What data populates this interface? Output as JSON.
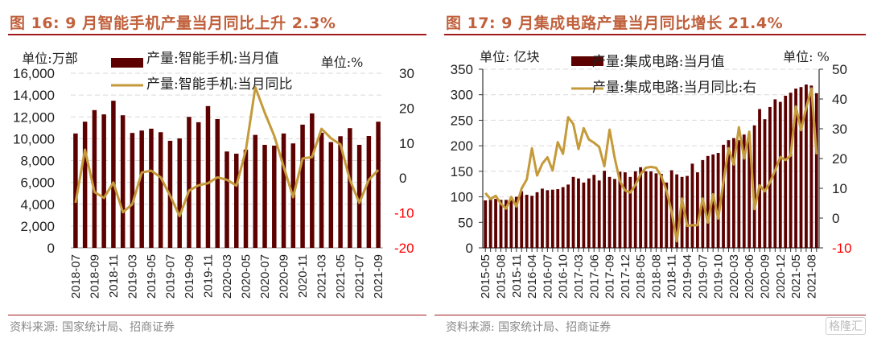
{
  "watermark": "格隆汇",
  "chart_data": [
    {
      "type": "bar",
      "figure_title": "图 16:  9 月智能手机产量当月同比上升 2.3%",
      "source": "资料来源:  国家统计局、招商证券",
      "left_unit": "单位:万部",
      "right_unit": "单位:%",
      "legend": [
        {
          "name": "产量:智能手机:当月值",
          "kind": "bar",
          "color": "#5c0000"
        },
        {
          "name": "产量:智能手机:当月同比",
          "kind": "line",
          "color": "#c49a3a"
        }
      ],
      "legend_placement": "top-center",
      "grid": true,
      "ylim_left": [
        0,
        16000
      ],
      "yticks_left": [
        "0",
        "2,000",
        "4,000",
        "6,000",
        "8,000",
        "10,000",
        "12,000",
        "14,000",
        "16,000"
      ],
      "ylim_right": [
        -20,
        30
      ],
      "yticks_right": [
        "-20",
        "-10",
        "0",
        "10",
        "20",
        "30"
      ],
      "negative_tick_color": "#ff0000",
      "x": [
        "2018-07",
        "2018-08",
        "2018-09",
        "2018-10",
        "2018-11",
        "2018-12",
        "2019-03",
        "2019-04",
        "2019-05",
        "2019-06",
        "2019-07",
        "2019-08",
        "2019-09",
        "2019-10",
        "2019-11",
        "2019-12",
        "2020-03",
        "2020-04",
        "2020-05",
        "2020-06",
        "2020-07",
        "2020-08",
        "2020-09",
        "2020-10",
        "2020-11",
        "2020-12",
        "2021-03",
        "2021-04",
        "2021-05",
        "2021-06",
        "2021-07",
        "2021-08",
        "2021-09"
      ],
      "xtick_labels": [
        "2018-07",
        "2018-09",
        "2018-11",
        "2019-03",
        "2019-05",
        "2019-07",
        "2019-09",
        "2019-11",
        "2020-03",
        "2020-05",
        "2020-07",
        "2020-09",
        "2020-11",
        "2021-03",
        "2021-05",
        "2021-07",
        "2021-09"
      ],
      "series": [
        {
          "name": "产量:智能手机:当月值",
          "axis": "left",
          "type": "bar",
          "values": [
            10480,
            11560,
            12620,
            12230,
            13480,
            12150,
            10530,
            10750,
            10920,
            10600,
            9810,
            10030,
            12000,
            11510,
            12990,
            11800,
            8830,
            8630,
            9000,
            10350,
            9440,
            9370,
            10480,
            9570,
            11290,
            12320,
            10550,
            9690,
            10230,
            10970,
            9440,
            10250,
            11560
          ]
        },
        {
          "name": "产量:智能手机:当月同比",
          "axis": "right",
          "type": "line",
          "values": [
            -7.1,
            8.1,
            -4.0,
            -5.7,
            -1.3,
            -9.8,
            -7.5,
            1.6,
            2.1,
            0.2,
            -5.1,
            -10.9,
            -3.6,
            -2.1,
            -1.5,
            0.2,
            -0.5,
            -2.2,
            7.9,
            26.0,
            18.7,
            12.1,
            3.3,
            -5.5,
            5.6,
            6.0,
            14.1,
            11.4,
            9.6,
            -0.5,
            -7.1,
            -0.5,
            2.3
          ]
        }
      ]
    },
    {
      "type": "bar",
      "figure_title": "图 17:  9 月集成电路产量当月同比增长 21.4%",
      "source": "资料来源:  国家统计局、招商证券",
      "left_unit": "单位:  亿块",
      "right_unit": "单位:  %",
      "legend": [
        {
          "name": "产量:集成电路:当月值",
          "kind": "bar",
          "color": "#5c0000"
        },
        {
          "name": "产量:集成电路:当月同比:右",
          "kind": "line",
          "color": "#c49a3a"
        }
      ],
      "legend_placement": "top-center",
      "grid": true,
      "ylim_left": [
        0,
        350
      ],
      "yticks_left": [
        "0",
        "50",
        "100",
        "150",
        "200",
        "250",
        "300",
        "350"
      ],
      "ylim_right": [
        -10,
        50
      ],
      "yticks_right": [
        "-10",
        "0",
        "10",
        "20",
        "30",
        "40",
        "50"
      ],
      "negative_tick_color": "#ff0000",
      "x": [
        "2015-05",
        "2015-06",
        "2015-07",
        "2015-08",
        "2015-09",
        "2015-10",
        "2015-11",
        "2015-12",
        "2016-03",
        "2016-04",
        "2016-05",
        "2016-06",
        "2016-07",
        "2016-08",
        "2016-09",
        "2016-10",
        "2016-11",
        "2016-12",
        "2017-03",
        "2017-04",
        "2017-05",
        "2017-06",
        "2017-07",
        "2017-08",
        "2017-09",
        "2017-10",
        "2017-11",
        "2017-12",
        "2018-03",
        "2018-04",
        "2018-05",
        "2018-06",
        "2018-07",
        "2018-08",
        "2018-09",
        "2018-10",
        "2018-11",
        "2018-12",
        "2019-03",
        "2019-04",
        "2019-05",
        "2019-06",
        "2019-07",
        "2019-08",
        "2019-09",
        "2019-10",
        "2019-11",
        "2019-12",
        "2020-03",
        "2020-04",
        "2020-05",
        "2020-06",
        "2020-07",
        "2020-08",
        "2020-09",
        "2020-10",
        "2020-11",
        "2020-12",
        "2021-03",
        "2021-04",
        "2021-05",
        "2021-06",
        "2021-07",
        "2021-08",
        "2021-09"
      ],
      "xtick_labels": [
        "2015-05",
        "2015-08",
        "2015-11",
        "2016-04",
        "2016-07",
        "2016-10",
        "2017-03",
        "2017-06",
        "2017-09",
        "2017-12",
        "2018-05",
        "2018-08",
        "2018-11",
        "2019-04",
        "2019-07",
        "2019-10",
        "2020-03",
        "2020-06",
        "2020-09",
        "2020-12",
        "2021-05",
        "2021-08"
      ],
      "series": [
        {
          "name": "产量:集成电路:当月值",
          "axis": "left",
          "type": "bar",
          "values": [
            93,
            95,
            96,
            94,
            94,
            93,
            100,
            111,
            104,
            102,
            109,
            116,
            113,
            114,
            115,
            119,
            124,
            139,
            136,
            128,
            136,
            143,
            132,
            151,
            139,
            135,
            149,
            148,
            139,
            150,
            158,
            150,
            150,
            146,
            145,
            128,
            152,
            144,
            139,
            141,
            165,
            148,
            172,
            180,
            183,
            186,
            202,
            211,
            215,
            211,
            222,
            221,
            240,
            272,
            252,
            276,
            291,
            286,
            298,
            304,
            312,
            315,
            320,
            318,
            303
          ]
        },
        {
          "name": "产量:集成电路:当月同比:右",
          "axis": "right",
          "type": "line",
          "values": [
            8.4,
            6.4,
            7.5,
            4.8,
            3.2,
            7.1,
            3.9,
            9.9,
            13.0,
            23.4,
            14.3,
            18.3,
            20.4,
            16.0,
            25.5,
            21.6,
            33.9,
            31.6,
            23.2,
            30.2,
            26.4,
            25.3,
            23.9,
            17.4,
            29.7,
            20.1,
            12.4,
            9.3,
            8.6,
            11.1,
            14.7,
            16.9,
            17.2,
            16.9,
            14.0,
            9.3,
            2.1,
            -7.8,
            6.6,
            -2.6,
            -2.4,
            -2.4,
            6.6,
            -1.5,
            8.0,
            -0.2,
            12.0,
            23.5,
            18.0,
            30.5,
            20.0,
            29.0,
            3.0,
            11.0,
            9.0,
            12.0,
            16.0,
            20.5,
            19.5,
            21.0,
            37.5,
            29.5,
            37.0,
            43.5,
            21.4
          ]
        }
      ]
    }
  ]
}
